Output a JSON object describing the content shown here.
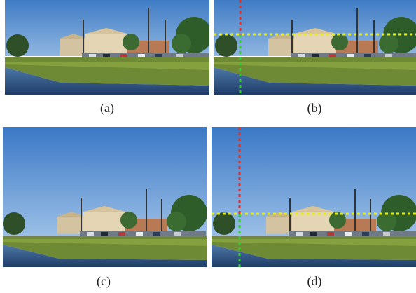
{
  "figure": {
    "panels": [
      {
        "caption": "(a)",
        "overlay": false,
        "crop": "tall"
      },
      {
        "caption": "(b)",
        "overlay": true,
        "crop": "tall"
      },
      {
        "caption": "(c)",
        "overlay": false,
        "crop": "short-sky"
      },
      {
        "caption": "(d)",
        "overlay": true,
        "crop": "short-sky"
      }
    ],
    "overlay_colors": {
      "vertical_top": "#e0302a",
      "vertical_bottom": "#33cc33",
      "horizontal": "#e6ee1a"
    }
  }
}
